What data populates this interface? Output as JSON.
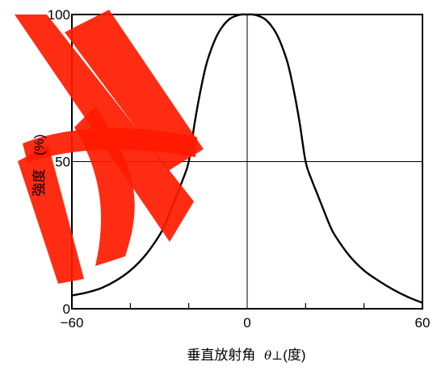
{
  "chart_data": {
    "type": "line",
    "title": "",
    "xlabel": "垂直放射角",
    "xlabel_symbol": "θ⊥",
    "xlabel_unit": "(度)",
    "ylabel": "強度",
    "ylabel_unit": "(%)",
    "xlim": [
      -60,
      60
    ],
    "ylim": [
      0,
      100
    ],
    "x_ticks": [
      -60,
      0,
      60
    ],
    "x_tick_labels": [
      "−60",
      "0",
      "60"
    ],
    "x_minor_ticks": [
      -40,
      -20,
      20,
      40
    ],
    "y_ticks": [
      0,
      50,
      100
    ],
    "y_tick_labels": [
      "0",
      "50",
      "100"
    ],
    "grid": {
      "x": [
        0
      ],
      "y": [
        50
      ]
    },
    "series": [
      {
        "x": [
          -60,
          -55,
          -50,
          -45,
          -40,
          -35,
          -30,
          -28,
          -26,
          -24,
          -22,
          -20,
          -18,
          -16,
          -14,
          -12,
          -10,
          -8,
          -6,
          -4,
          -2,
          0,
          2,
          4,
          6,
          8,
          10,
          12,
          14,
          16,
          18,
          20,
          22,
          24,
          26,
          28,
          30,
          35,
          40,
          45,
          50,
          55,
          60
        ],
        "y": [
          4.5,
          5.5,
          7,
          9.5,
          13,
          18,
          25,
          29,
          34,
          39,
          44,
          50,
          63,
          74,
          83,
          89,
          93.5,
          96.5,
          98.5,
          99.5,
          100,
          100,
          100,
          99.5,
          98.5,
          96.5,
          93.5,
          89,
          83,
          74,
          63,
          50,
          44,
          39,
          34,
          29,
          25,
          18,
          13,
          9.5,
          6.5,
          4,
          2
        ]
      }
    ],
    "colors": {
      "line": "#000000",
      "watermark": "#ff1a00"
    }
  }
}
